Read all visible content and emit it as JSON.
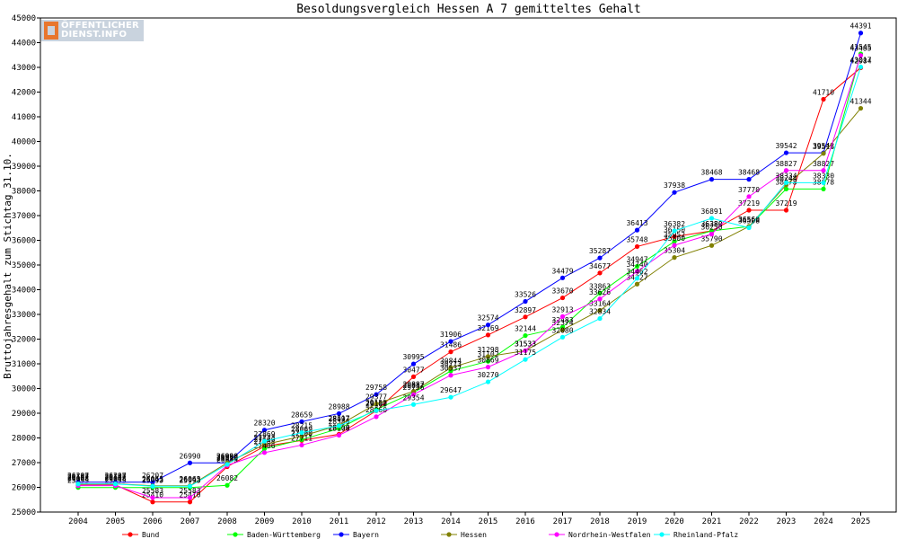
{
  "brand": {
    "line1": "ÖFFENTLICHER",
    "line2": "DIENST.INFO"
  },
  "chart_data": {
    "type": "line",
    "title": "Besoldungsvergleich Hessen A 7 gemitteltes Gehalt",
    "xlabel": "",
    "ylabel": "Bruttojahresgehalt zum Stichtag 31.10.",
    "ylim": [
      25000,
      45000
    ],
    "yticks": [
      25000,
      26000,
      27000,
      28000,
      29000,
      30000,
      31000,
      32000,
      33000,
      34000,
      35000,
      36000,
      37000,
      38000,
      39000,
      40000,
      41000,
      42000,
      43000,
      44000,
      45000
    ],
    "grid": false,
    "legend": "bottom",
    "categories": [
      "2004",
      "2005",
      "2006",
      "2007",
      "2008",
      "2009",
      "2010",
      "2011",
      "2012",
      "2013",
      "2014",
      "2015",
      "2016",
      "2017",
      "2018",
      "2019",
      "2020",
      "2021",
      "2022",
      "2023",
      "2024",
      "2025"
    ],
    "series": [
      {
        "name": "Bund",
        "color": "#ff0000",
        "values": [
          26102,
          26102,
          25410,
          25410,
          26835,
          27660,
          27900,
          28150,
          29100,
          30477,
          31486,
          32169,
          32897,
          33670,
          34677,
          35748,
          36150,
          36380,
          37219,
          37219,
          41710,
          42984
        ]
      },
      {
        "name": "Baden-Württemberg",
        "color": "#00ff00",
        "values": [
          25993,
          25993,
          25993,
          25993,
          26082,
          27564,
          27930,
          28380,
          29153,
          29837,
          30713,
          31102,
          32144,
          32483,
          33863,
          34947,
          35952,
          36380,
          36560,
          38078,
          38078,
          43545
        ]
      },
      {
        "name": "Bayern",
        "color": "#0000ff",
        "values": [
          26207,
          26207,
          26207,
          26990,
          26990,
          28320,
          28659,
          28988,
          29758,
          30995,
          31906,
          32574,
          33526,
          34479,
          35287,
          36413,
          37938,
          38468,
          38468,
          39542,
          39542,
          44391
        ]
      },
      {
        "name": "Hessen",
        "color": "#808000",
        "values": [
          26147,
          26147,
          26063,
          26063,
          26990,
          27733,
          28069,
          28517,
          29377,
          29887,
          30844,
          31298,
          31533,
          32374,
          33164,
          34227,
          35304,
          35790,
          36560,
          38244,
          39516,
          41344
        ]
      },
      {
        "name": "Nordrhein-Westfalen",
        "color": "#ff00ff",
        "values": [
          26068,
          26068,
          25583,
          25583,
          26890,
          27406,
          27711,
          28108,
          28860,
          29756,
          30537,
          30869,
          31533,
          32913,
          33626,
          34740,
          35800,
          36250,
          37770,
          38827,
          38827,
          43485
        ]
      },
      {
        "name": "Rheinland-Pfalz",
        "color": "#00ffff",
        "values": [
          26137,
          26137,
          26045,
          26045,
          26930,
          27869,
          28215,
          28497,
          29102,
          29354,
          29647,
          30270,
          31175,
          32080,
          32834,
          34462,
          36382,
          36891,
          36508,
          38334,
          38330,
          43017
        ]
      }
    ]
  }
}
